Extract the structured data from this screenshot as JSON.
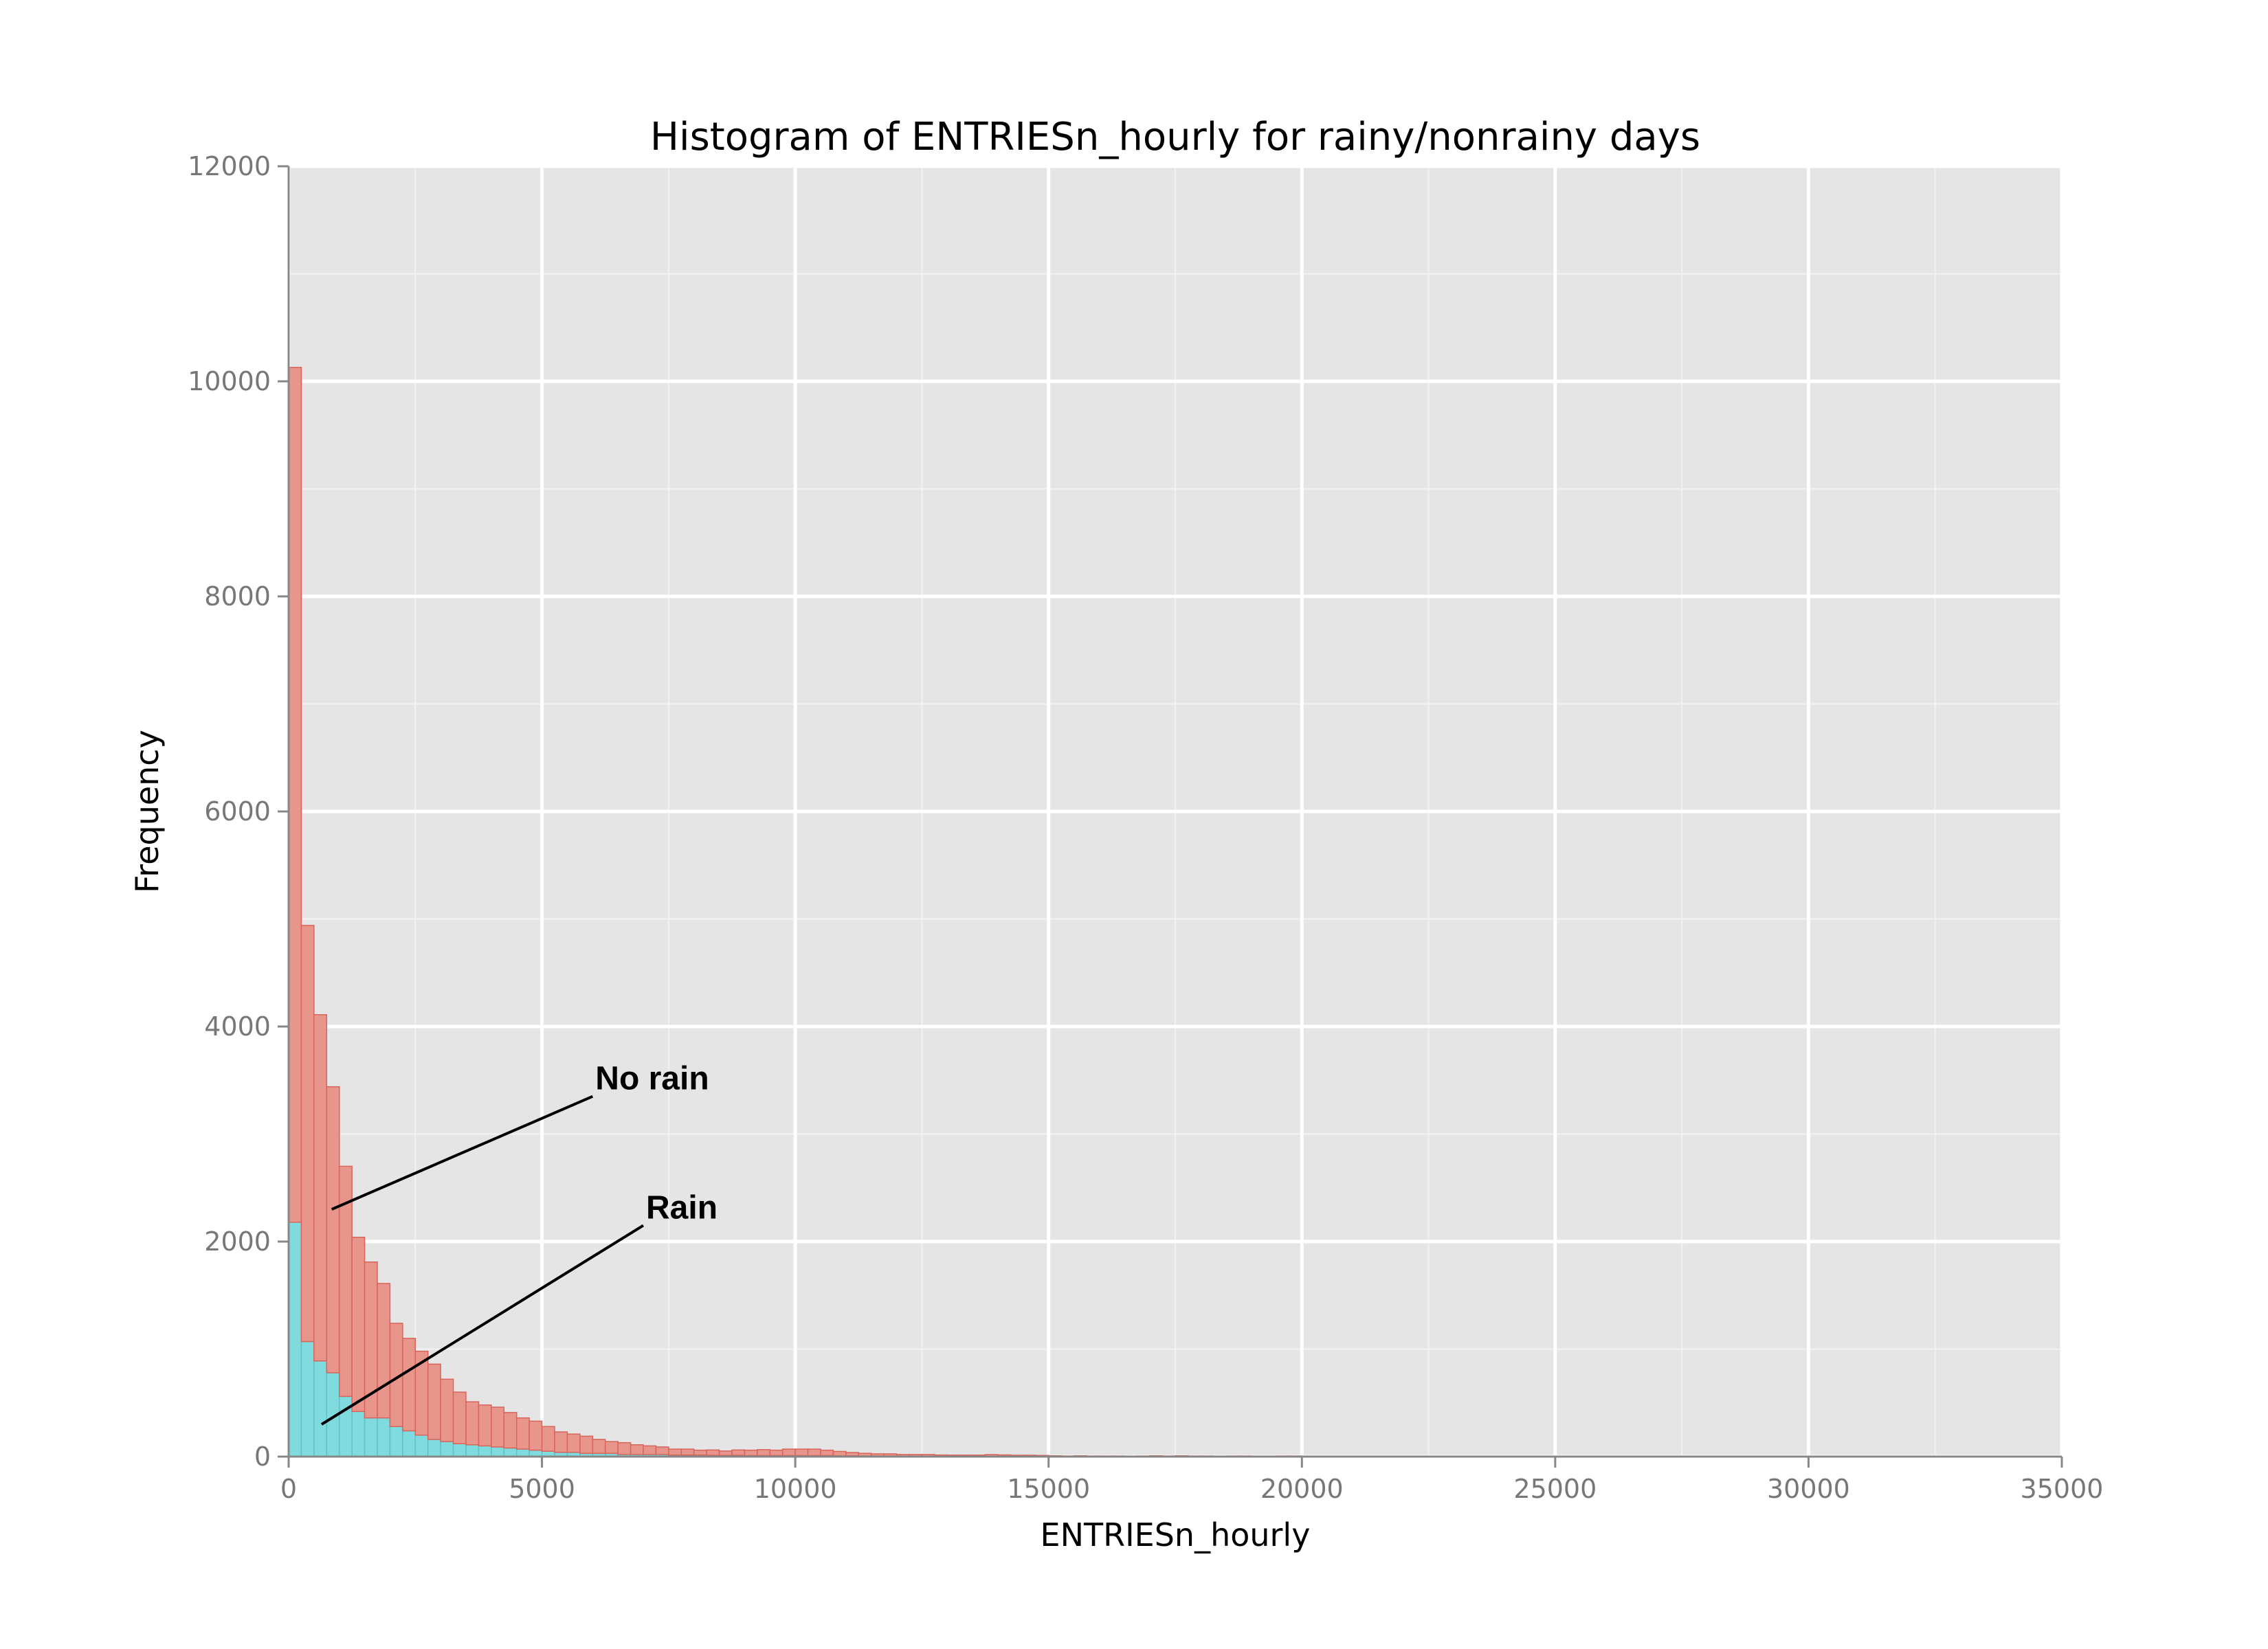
{
  "chart_data": {
    "type": "bar",
    "title": "Histogram of ENTRIESn_hourly for rainy/nonrainy days",
    "xlabel": "ENTRIESn_hourly",
    "ylabel": "Frequency",
    "xlim": [
      0,
      35000
    ],
    "ylim": [
      0,
      12000
    ],
    "x_ticks": [
      0,
      5000,
      10000,
      15000,
      20000,
      25000,
      30000,
      35000
    ],
    "y_ticks": [
      0,
      2000,
      4000,
      6000,
      8000,
      10000,
      12000
    ],
    "grid": true,
    "stacked": true,
    "bin_width": 250,
    "bin_start": 0,
    "series": [
      {
        "name": "Rain",
        "color": "#7fdbde",
        "edge": "#5cc3c7",
        "values": [
          2180,
          1070,
          890,
          780,
          560,
          420,
          360,
          360,
          280,
          240,
          200,
          160,
          140,
          120,
          110,
          100,
          90,
          80,
          70,
          60,
          50,
          40,
          40,
          30,
          30,
          30,
          20,
          20,
          20,
          20,
          15,
          15,
          15,
          12,
          12,
          12,
          10,
          10,
          10,
          10,
          10,
          10,
          10,
          8,
          8,
          6,
          6,
          6,
          5,
          5,
          5,
          5,
          4,
          4,
          4,
          4,
          4,
          3,
          3,
          3
        ]
      },
      {
        "name": "No rain",
        "color": "#e8958b",
        "edge": "#d9645a",
        "values": [
          7950,
          3870,
          3220,
          2660,
          2140,
          1620,
          1450,
          1250,
          960,
          860,
          780,
          700,
          580,
          480,
          400,
          380,
          370,
          330,
          290,
          270,
          230,
          190,
          170,
          160,
          130,
          110,
          110,
          90,
          80,
          70,
          55,
          55,
          45,
          50,
          40,
          50,
          50,
          55,
          50,
          60,
          60,
          60,
          50,
          40,
          30,
          25,
          20,
          20,
          15,
          15,
          15,
          10,
          10,
          10,
          10,
          15,
          12,
          10,
          10,
          8,
          8,
          6,
          8,
          6,
          6,
          6,
          5,
          6,
          8,
          6,
          8,
          6,
          6,
          4,
          6,
          6,
          4,
          4,
          6,
          6,
          4,
          4,
          4,
          4,
          4,
          4,
          4,
          4,
          4,
          4,
          4,
          4,
          4,
          4,
          4,
          4,
          4,
          4,
          4,
          4,
          4,
          4,
          4,
          4,
          4,
          4,
          4,
          4,
          4,
          4,
          4,
          4,
          4,
          4,
          4,
          4,
          4,
          4,
          4,
          4,
          4,
          4,
          4,
          4,
          4,
          4,
          4,
          4,
          4,
          4,
          4
        ]
      }
    ],
    "annotations": [
      {
        "text": "No rain",
        "target_x": 850,
        "target_y": 2300,
        "text_x": 6000,
        "text_y": 3350
      },
      {
        "text": "Rain",
        "target_x": 650,
        "target_y": 300,
        "text_x": 7000,
        "text_y": 2150
      }
    ]
  }
}
